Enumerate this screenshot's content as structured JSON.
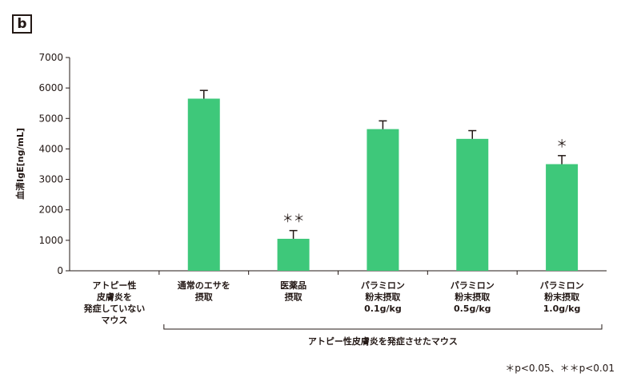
{
  "panel_label": "b",
  "footnote": "＊p<0.05、＊＊p<0.01",
  "chart_data": {
    "type": "bar",
    "ylabel": "血清IgE[ng/mL]",
    "ylim": [
      0,
      7000
    ],
    "yticks": [
      0,
      1000,
      2000,
      3000,
      4000,
      5000,
      6000,
      7000
    ],
    "categories": [
      [
        "アトピー性",
        "皮膚炎を",
        "発症していない",
        "マウス"
      ],
      [
        "通常のエサを",
        "摂取"
      ],
      [
        "医薬品",
        "摂取"
      ],
      [
        "パラミロン",
        "粉末摂取",
        "0.1g/kg"
      ],
      [
        "パラミロン",
        "粉末摂取",
        "0.5g/kg"
      ],
      [
        "パラミロン",
        "粉末摂取",
        "1.0g/kg"
      ]
    ],
    "values": [
      0,
      5650,
      1050,
      4650,
      4330,
      3500
    ],
    "errors": [
      0,
      270,
      270,
      270,
      270,
      280
    ],
    "significance": [
      "",
      "",
      "＊＊",
      "",
      "",
      "＊"
    ],
    "group_label": "アトピー性皮膚炎を発症させたマウス",
    "group_range": [
      1,
      5
    ],
    "bar_color": "#3ec87a",
    "axis_color": "#231815",
    "grid": false
  }
}
